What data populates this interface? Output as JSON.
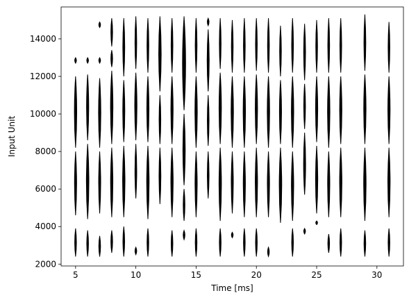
{
  "chart_data": {
    "type": "raster",
    "title": "",
    "xlabel": "Time [ms]",
    "ylabel": "Input Unit",
    "xlim": [
      3.8,
      32.2
    ],
    "ylim": [
      1900,
      15700
    ],
    "xticks": [
      5,
      10,
      15,
      20,
      25,
      30
    ],
    "yticks": [
      2000,
      4000,
      6000,
      8000,
      10000,
      12000,
      14000
    ],
    "grid": false,
    "legend": "none",
    "color": "#000000",
    "spike_columns": [
      {
        "t": 5,
        "segments": [
          [
            2400,
            3900
          ],
          [
            4600,
            8000
          ],
          [
            8200,
            12000
          ],
          [
            12700,
            13000
          ]
        ]
      },
      {
        "t": 6,
        "segments": [
          [
            2400,
            3800
          ],
          [
            4400,
            8400
          ],
          [
            8600,
            12100
          ],
          [
            12700,
            13000
          ]
        ]
      },
      {
        "t": 7,
        "segments": [
          [
            2400,
            3500
          ],
          [
            4700,
            8000
          ],
          [
            8200,
            11900
          ],
          [
            12700,
            13000
          ],
          [
            14600,
            14900
          ]
        ]
      },
      {
        "t": 8,
        "segments": [
          [
            2600,
            3800
          ],
          [
            4500,
            8200
          ],
          [
            8400,
            12300
          ],
          [
            12500,
            13400
          ],
          [
            13600,
            15100
          ]
        ]
      },
      {
        "t": 9,
        "segments": [
          [
            2400,
            4000
          ],
          [
            4500,
            8300
          ],
          [
            8500,
            11800
          ],
          [
            12000,
            15100
          ]
        ]
      },
      {
        "t": 10,
        "segments": [
          [
            2500,
            2900
          ],
          [
            5500,
            8400
          ],
          [
            8600,
            12200
          ],
          [
            12400,
            15200
          ]
        ]
      },
      {
        "t": 11,
        "segments": [
          [
            2400,
            3900
          ],
          [
            4400,
            8300
          ],
          [
            8500,
            12000
          ],
          [
            12200,
            15100
          ]
        ]
      },
      {
        "t": 12,
        "segments": [
          [
            5200,
            8200
          ],
          [
            8400,
            11000
          ],
          [
            11200,
            15200
          ]
        ]
      },
      {
        "t": 13,
        "segments": [
          [
            2400,
            3800
          ],
          [
            4500,
            8200
          ],
          [
            8400,
            12000
          ],
          [
            12200,
            15100
          ]
        ]
      },
      {
        "t": 14,
        "segments": [
          [
            3300,
            3800
          ],
          [
            4300,
            6000
          ],
          [
            6200,
            10000
          ],
          [
            10200,
            15200
          ]
        ]
      },
      {
        "t": 15,
        "segments": [
          [
            2400,
            3900
          ],
          [
            4500,
            8000
          ],
          [
            8200,
            12000
          ],
          [
            12200,
            15100
          ]
        ]
      },
      {
        "t": 16,
        "segments": [
          [
            5500,
            8000
          ],
          [
            8300,
            11000
          ],
          [
            11200,
            14500
          ],
          [
            14700,
            15100
          ]
        ]
      },
      {
        "t": 17,
        "segments": [
          [
            2400,
            3900
          ],
          [
            4300,
            8200
          ],
          [
            8400,
            12200
          ],
          [
            12400,
            15100
          ]
        ]
      },
      {
        "t": 18,
        "segments": [
          [
            3400,
            3700
          ],
          [
            4700,
            8000
          ],
          [
            8200,
            12000
          ],
          [
            12200,
            15000
          ]
        ]
      },
      {
        "t": 19,
        "segments": [
          [
            2400,
            3900
          ],
          [
            4500,
            8000
          ],
          [
            8200,
            12000
          ],
          [
            12200,
            15100
          ]
        ]
      },
      {
        "t": 20,
        "segments": [
          [
            2400,
            3900
          ],
          [
            4500,
            8200
          ],
          [
            8400,
            12100
          ],
          [
            12300,
            15100
          ]
        ]
      },
      {
        "t": 21,
        "segments": [
          [
            2400,
            2900
          ],
          [
            4500,
            8000
          ],
          [
            8200,
            12000
          ],
          [
            12200,
            15100
          ]
        ]
      },
      {
        "t": 22,
        "segments": [
          [
            4200,
            8200
          ],
          [
            8400,
            11800
          ],
          [
            12000,
            14700
          ]
        ]
      },
      {
        "t": 23,
        "segments": [
          [
            2400,
            3900
          ],
          [
            4300,
            8000
          ],
          [
            8200,
            12000
          ],
          [
            12200,
            15100
          ]
        ]
      },
      {
        "t": 24,
        "segments": [
          [
            3600,
            3900
          ],
          [
            5700,
            9000
          ],
          [
            9200,
            11600
          ],
          [
            11800,
            14800
          ]
        ]
      },
      {
        "t": 25,
        "segments": [
          [
            4100,
            4300
          ],
          [
            4700,
            8300
          ],
          [
            8500,
            12000
          ],
          [
            12200,
            15000
          ]
        ]
      },
      {
        "t": 26,
        "segments": [
          [
            2600,
            3600
          ],
          [
            4500,
            8000
          ],
          [
            8200,
            12000
          ],
          [
            12200,
            15100
          ]
        ]
      },
      {
        "t": 27,
        "segments": [
          [
            2400,
            3900
          ],
          [
            4500,
            8200
          ],
          [
            8400,
            12000
          ],
          [
            12200,
            15100
          ]
        ]
      },
      {
        "t": 29,
        "segments": [
          [
            2400,
            3800
          ],
          [
            4300,
            8200
          ],
          [
            8400,
            12100
          ],
          [
            12300,
            15300
          ]
        ]
      },
      {
        "t": 31,
        "segments": [
          [
            2400,
            3900
          ],
          [
            4500,
            8200
          ],
          [
            8400,
            12000
          ],
          [
            12200,
            14900
          ]
        ]
      }
    ]
  }
}
